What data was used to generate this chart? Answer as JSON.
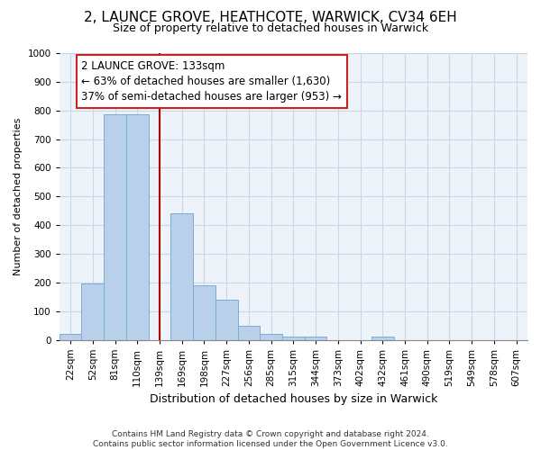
{
  "title1": "2, LAUNCE GROVE, HEATHCOTE, WARWICK, CV34 6EH",
  "title2": "Size of property relative to detached houses in Warwick",
  "xlabel": "Distribution of detached houses by size in Warwick",
  "ylabel": "Number of detached properties",
  "categories": [
    "22sqm",
    "52sqm",
    "81sqm",
    "110sqm",
    "139sqm",
    "169sqm",
    "198sqm",
    "227sqm",
    "256sqm",
    "285sqm",
    "315sqm",
    "344sqm",
    "373sqm",
    "402sqm",
    "432sqm",
    "461sqm",
    "490sqm",
    "519sqm",
    "549sqm",
    "578sqm",
    "607sqm"
  ],
  "values": [
    20,
    195,
    785,
    785,
    0,
    440,
    190,
    140,
    50,
    20,
    10,
    10,
    0,
    0,
    10,
    0,
    0,
    0,
    0,
    0,
    0
  ],
  "bar_color": "#b8d0ea",
  "bar_edge_color": "#7aadd4",
  "vline_color": "#aa0000",
  "annotation_line1": "2 LAUNCE GROVE: 133sqm",
  "annotation_line2": "← 63% of detached houses are smaller (1,630)",
  "annotation_line3": "37% of semi-detached houses are larger (953) →",
  "annotation_box_facecolor": "#ffffff",
  "annotation_box_edgecolor": "#cc2222",
  "ylim": [
    0,
    1000
  ],
  "yticks": [
    0,
    100,
    200,
    300,
    400,
    500,
    600,
    700,
    800,
    900,
    1000
  ],
  "grid_color": "#c8d8ec",
  "bg_color": "#eef2f9",
  "footer": "Contains HM Land Registry data © Crown copyright and database right 2024.\nContains public sector information licensed under the Open Government Licence v3.0.",
  "title1_fontsize": 11,
  "title2_fontsize": 9,
  "xlabel_fontsize": 9,
  "ylabel_fontsize": 8,
  "tick_fontsize": 7.5,
  "footer_fontsize": 6.5
}
